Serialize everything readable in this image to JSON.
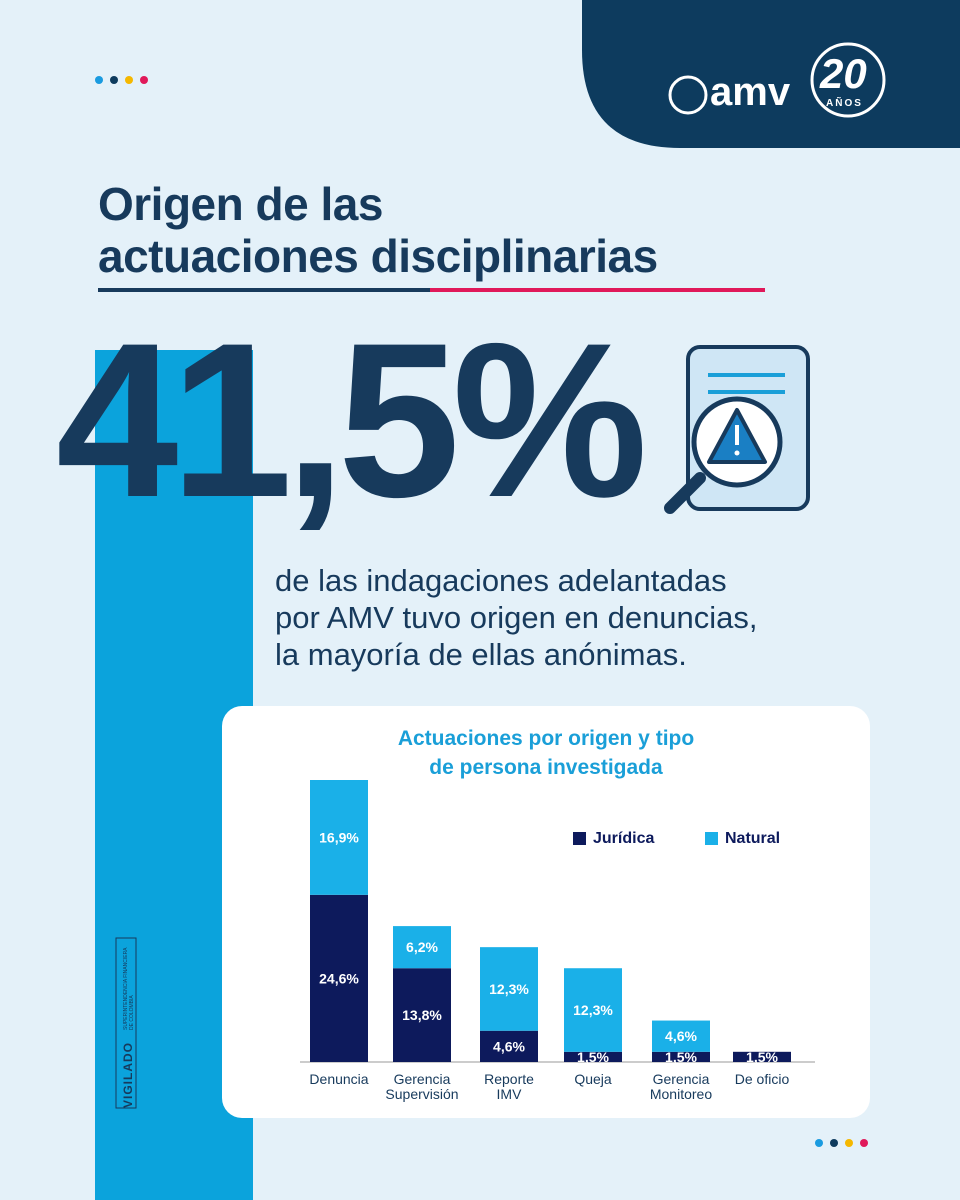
{
  "header": {
    "logo": "amv",
    "logo_number": "20",
    "logo_years": "AÑOS"
  },
  "title_line_1": "Origen de las",
  "title_line_2": "actuaciones disciplinarias",
  "highlight": "41,5%",
  "description": "de las indagaciones adelantadas\npor AMV tuvo origen en denuncias,\nla mayoría de ellas anónimas.",
  "vigilado": "VIGILADO",
  "vigilado_entity": "SUPERINTENDENCIA FINANCIERA\nDE COLOMBIA",
  "chart_data": {
    "type": "stacked_bar",
    "title": "Actuaciones por origen y tipo\nde persona investigada",
    "categories": [
      "Denuncia",
      "Gerencia\nSupervisión",
      "Reporte\nIMV",
      "Queja",
      "Gerencia\nMonitoreo",
      "De oficio"
    ],
    "legend": "top-right",
    "series": [
      {
        "name": "Jurídica",
        "color": "#0d1a5c",
        "values": [
          24.6,
          13.8,
          4.6,
          1.5,
          1.5,
          1.5
        ],
        "value_labels": [
          "24,6%",
          "13,8%",
          "4,6%",
          "1,5%",
          "1,5%",
          "1,5%"
        ]
      },
      {
        "name": "Natural",
        "color": "#1ab0e8",
        "values": [
          16.9,
          6.2,
          12.3,
          12.3,
          4.6,
          null
        ],
        "value_labels": [
          "16,9%",
          "6,2%",
          "12,3%",
          "12,3%",
          "4,6%",
          null
        ]
      }
    ]
  }
}
